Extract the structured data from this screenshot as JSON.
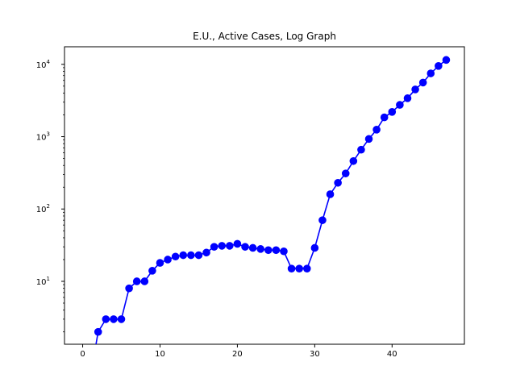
{
  "chart_data": {
    "type": "line",
    "title": "E.U., Active Cases, Log Graph",
    "xlabel": "",
    "ylabel": "",
    "yscale": "log",
    "xlim": [
      -2.35,
      49.35
    ],
    "ylim": [
      1.35,
      17500
    ],
    "grid": false,
    "x_ticks": [
      {
        "value": 0,
        "label": "0"
      },
      {
        "value": 10,
        "label": "10"
      },
      {
        "value": 20,
        "label": "20"
      },
      {
        "value": 30,
        "label": "30"
      },
      {
        "value": 40,
        "label": "40"
      }
    ],
    "y_ticks": [
      {
        "value": 10,
        "base": "10",
        "exp": "1"
      },
      {
        "value": 100,
        "base": "10",
        "exp": "2"
      },
      {
        "value": 1000,
        "base": "10",
        "exp": "3"
      },
      {
        "value": 10000,
        "base": "10",
        "exp": "4"
      }
    ],
    "series": [
      {
        "color": "#0000ff",
        "marker": "circle",
        "x": [
          0,
          1,
          2,
          3,
          4,
          5,
          6,
          7,
          8,
          9,
          10,
          11,
          12,
          13,
          14,
          15,
          16,
          17,
          18,
          19,
          20,
          21,
          22,
          23,
          24,
          25,
          26,
          27,
          28,
          29,
          30,
          31,
          32,
          33,
          34,
          35,
          36,
          37,
          38,
          39,
          40,
          41,
          42,
          43,
          44,
          45,
          46,
          47
        ],
        "y": [
          0,
          0,
          2,
          3,
          3,
          3,
          8,
          10,
          10,
          14,
          18,
          20,
          22,
          23,
          23,
          23,
          25,
          30,
          31,
          31,
          33,
          30,
          29,
          28,
          27,
          27,
          26,
          15,
          15,
          15,
          29,
          70,
          160,
          230,
          310,
          460,
          660,
          930,
          1250,
          1850,
          2200,
          2750,
          3400,
          4500,
          5600,
          7500,
          9500,
          11500
        ]
      }
    ]
  }
}
